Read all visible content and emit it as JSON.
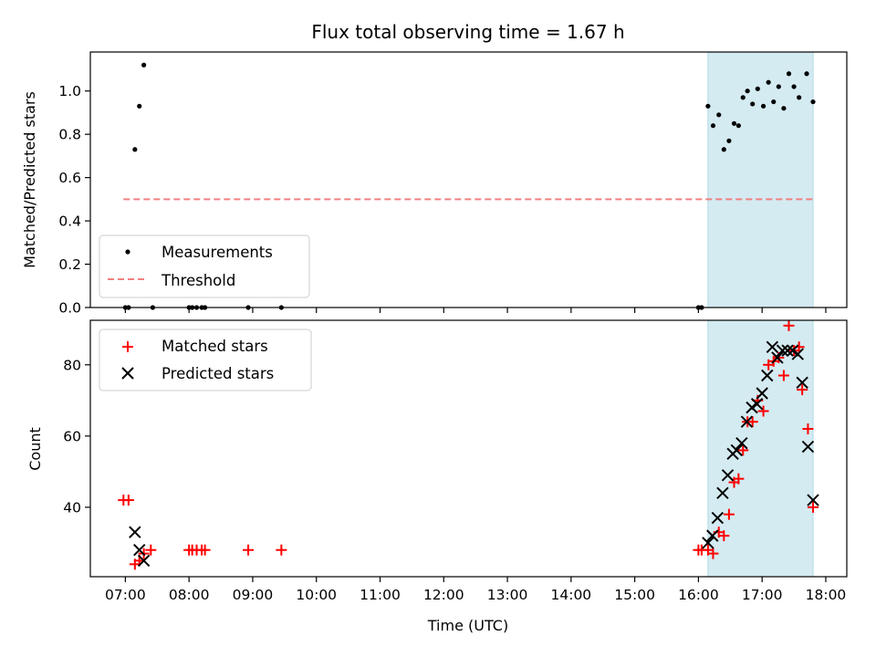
{
  "chart_data": [
    {
      "type": "scatter",
      "title": "Flux total observing time = 1.67 h",
      "ylabel": "Matched/Predicted stars",
      "xlabel": "",
      "ylim": [
        0,
        1.18
      ],
      "yticks": [
        0.0,
        0.2,
        0.4,
        0.6,
        0.8,
        1.0
      ],
      "ytick_labels": [
        "0.0",
        "0.2",
        "0.4",
        "0.6",
        "0.8",
        "1.0"
      ],
      "xlim": [
        6.45,
        18.33
      ],
      "shaded_region": {
        "x_start": 16.15,
        "x_end": 17.8,
        "color": "#d4ebf1"
      },
      "legend": {
        "placement": "lower-left",
        "entries": [
          "Measurements",
          "Threshold"
        ]
      },
      "series": [
        {
          "name": "Measurements",
          "color": "#000000",
          "marker": "dot",
          "x": [
            7.0,
            7.05,
            7.15,
            7.22,
            7.29,
            7.43,
            8.0,
            8.05,
            8.12,
            8.2,
            8.25,
            8.93,
            9.45,
            16.0,
            16.05,
            16.15,
            16.23,
            16.32,
            16.4,
            16.48,
            16.56,
            16.63,
            16.7,
            16.77,
            16.85,
            16.93,
            17.02,
            17.1,
            17.18,
            17.26,
            17.34,
            17.42,
            17.5,
            17.58,
            17.7,
            17.8
          ],
          "y": [
            0.0,
            0.0,
            0.73,
            0.93,
            1.12,
            0.0,
            0.0,
            0.0,
            0.0,
            0.0,
            0.0,
            0.0,
            0.0,
            0.0,
            0.0,
            0.93,
            0.84,
            0.89,
            0.73,
            0.77,
            0.85,
            0.84,
            0.97,
            1.0,
            0.94,
            1.01,
            0.93,
            1.04,
            0.95,
            1.02,
            0.92,
            1.08,
            1.02,
            0.97,
            1.08,
            0.95
          ]
        },
        {
          "name": "Threshold",
          "color": "#f08080",
          "style": "dashed",
          "x": [
            6.97,
            17.8
          ],
          "y": [
            0.5,
            0.5
          ]
        }
      ]
    },
    {
      "type": "scatter",
      "title": "",
      "ylabel": "Count",
      "xlabel": "Time (UTC)",
      "ylim": [
        20.5,
        92.5
      ],
      "yticks": [
        40,
        60,
        80
      ],
      "ytick_labels": [
        "40",
        "60",
        "80"
      ],
      "xlim": [
        6.45,
        18.33
      ],
      "xticks": [
        7,
        8,
        9,
        10,
        11,
        12,
        13,
        14,
        15,
        16,
        17,
        18
      ],
      "xtick_labels": [
        "07:00",
        "08:00",
        "09:00",
        "10:00",
        "11:00",
        "12:00",
        "13:00",
        "14:00",
        "15:00",
        "16:00",
        "17:00",
        "18:00"
      ],
      "shaded_region": {
        "x_start": 16.15,
        "x_end": 17.8,
        "color": "#d4ebf1"
      },
      "legend": {
        "placement": "upper-left",
        "entries": [
          "Matched stars",
          "Predicted stars"
        ]
      },
      "series": [
        {
          "name": "Matched stars",
          "color": "#ff0000",
          "marker": "plus",
          "x": [
            6.97,
            7.05,
            7.15,
            7.22,
            7.29,
            7.4,
            8.0,
            8.05,
            8.12,
            8.2,
            8.25,
            8.93,
            9.45,
            16.0,
            16.05,
            16.15,
            16.23,
            16.32,
            16.4,
            16.48,
            16.56,
            16.63,
            16.7,
            16.77,
            16.85,
            16.93,
            17.02,
            17.1,
            17.18,
            17.26,
            17.34,
            17.42,
            17.5,
            17.58,
            17.63,
            17.72,
            17.8
          ],
          "y": [
            42,
            42,
            24,
            25,
            27,
            28,
            28,
            28,
            28,
            28,
            28,
            28,
            28,
            28,
            28,
            28,
            27,
            33,
            32,
            38,
            47,
            48,
            56,
            64,
            64,
            70,
            67,
            80,
            81,
            82,
            77,
            91,
            84,
            85,
            73,
            62,
            40
          ]
        },
        {
          "name": "Predicted stars",
          "color": "#000000",
          "marker": "x",
          "x": [
            7.15,
            7.22,
            7.29,
            16.15,
            16.22,
            16.3,
            16.38,
            16.46,
            16.54,
            16.6,
            16.68,
            16.76,
            16.84,
            16.92,
            17.0,
            17.08,
            17.16,
            17.24,
            17.32,
            17.4,
            17.48,
            17.56,
            17.63,
            17.72,
            17.8
          ],
          "y": [
            33,
            28,
            25,
            30,
            32,
            37,
            44,
            49,
            55,
            56,
            58,
            64,
            68,
            69,
            72,
            77,
            85,
            82,
            84,
            84,
            84,
            83,
            75,
            57,
            42
          ]
        }
      ]
    }
  ]
}
